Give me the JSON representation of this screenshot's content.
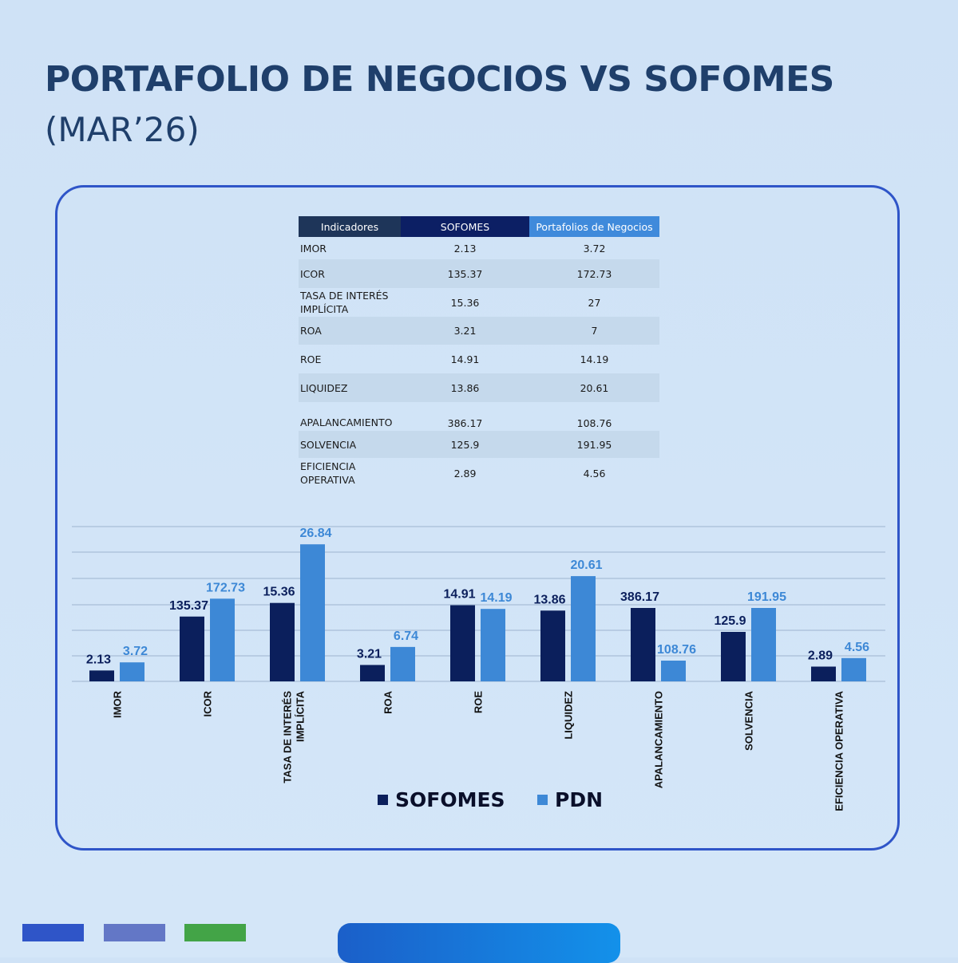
{
  "header": {
    "title": "PORTAFOLIO DE NEGOCIOS VS SOFOMES",
    "subtitle": "(MAR’26)"
  },
  "table": {
    "headers": [
      "Indicadores",
      "SOFOMES",
      "Portafolios de Negocios"
    ],
    "rows": [
      {
        "name": "IMOR",
        "sofomes": "2.13",
        "pdn": "3.72"
      },
      {
        "name": "ICOR",
        "sofomes": "135.37",
        "pdn": "172.73"
      },
      {
        "name": "TASA DE INTERÉS IMPLÍCITA",
        "sofomes": "15.36",
        "pdn": "27"
      },
      {
        "name": "ROA",
        "sofomes": "3.21",
        "pdn": "7"
      },
      {
        "name": "ROE",
        "sofomes": "14.91",
        "pdn": "14.19"
      },
      {
        "name": "LIQUIDEZ",
        "sofomes": "13.86",
        "pdn": "20.61"
      },
      {
        "name": "APALANCAMIENTO",
        "sofomes": "386.17",
        "pdn": "108.76"
      },
      {
        "name": "SOLVENCIA",
        "sofomes": "125.9",
        "pdn": "191.95"
      },
      {
        "name": "EFICIENCIA OPERATIVA",
        "sofomes": "2.89",
        "pdn": "4.56"
      }
    ]
  },
  "legend": [
    "SOFOMES",
    "PDN"
  ],
  "colors": {
    "sofomes": "#0b1f5c",
    "pdn": "#3d88d6",
    "title": "#1f3f6b",
    "card_border": "#2f55c8",
    "footer_1": "#2f55c8",
    "footer_2": "#6377c6",
    "footer_3": "#43a447"
  },
  "chart_data": {
    "type": "bar",
    "categories": [
      "IMOR",
      "ICOR",
      "TASA DE INTERÉS IMPLÍCITA",
      "ROA",
      "ROE",
      "LIQUIDEZ",
      "APALANCAMIENTO",
      "SOLVENCIA",
      "EFICIENCIA OPERATIVA"
    ],
    "series": [
      {
        "name": "SOFOMES",
        "values": [
          2.13,
          135.37,
          15.36,
          3.21,
          14.91,
          13.86,
          386.17,
          125.9,
          2.89
        ],
        "labels": [
          "2.13",
          "135.37",
          "15.36",
          "3.21",
          "14.91",
          "13.86",
          "386.17",
          "125.9",
          "2.89"
        ]
      },
      {
        "name": "PDN",
        "values": [
          3.72,
          172.73,
          26.84,
          6.74,
          14.19,
          20.61,
          108.76,
          191.95,
          4.56
        ],
        "labels": [
          "3.72",
          "172.73",
          "26.84",
          "6.74",
          "14.19",
          "20.61",
          "108.76",
          "191.95",
          "4.56"
        ]
      }
    ],
    "legend_position": "bottom",
    "grid": true
  }
}
